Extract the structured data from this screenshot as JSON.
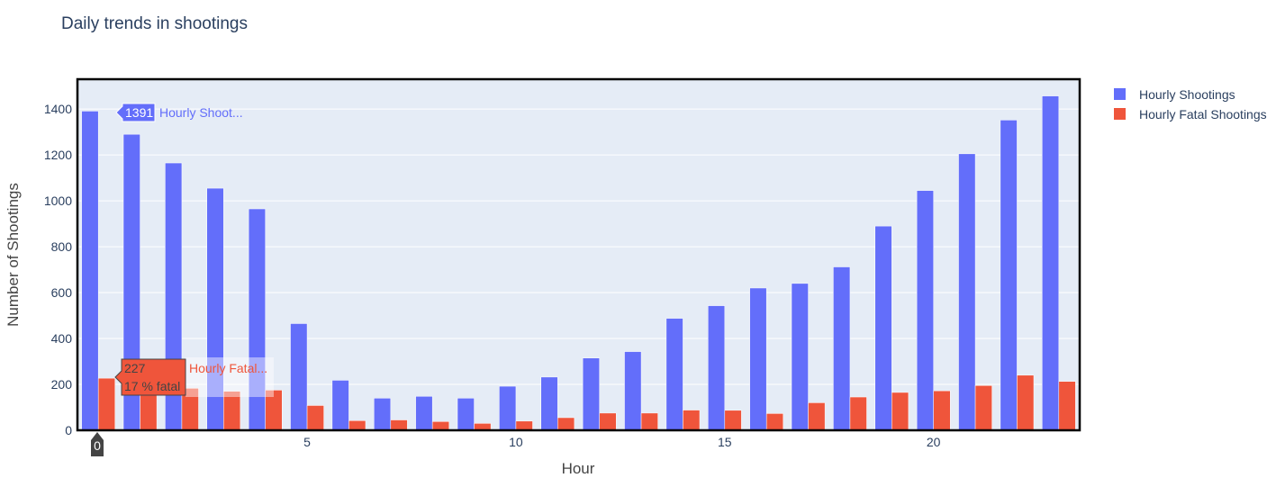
{
  "chart_data": {
    "type": "bar",
    "title": "Daily trends in shootings",
    "xlabel": "Hour",
    "ylabel": "Number of Shootings",
    "x_ticks": [
      5,
      10,
      15,
      20
    ],
    "y_ticks": [
      0,
      200,
      400,
      600,
      800,
      1000,
      1200,
      1400
    ],
    "xlim": [
      -0.5,
      23.5
    ],
    "ylim": [
      0,
      1530
    ],
    "categories": [
      0,
      1,
      2,
      3,
      4,
      5,
      6,
      7,
      8,
      9,
      10,
      11,
      12,
      13,
      14,
      15,
      16,
      17,
      18,
      19,
      20,
      21,
      22,
      23
    ],
    "series": [
      {
        "name": "Hourly Shootings",
        "color": "#636efa",
        "values": [
          1391,
          1290,
          1165,
          1055,
          965,
          465,
          218,
          140,
          148,
          140,
          192,
          232,
          315,
          343,
          488,
          543,
          620,
          640,
          712,
          890,
          1045,
          1205,
          1352,
          1457
        ]
      },
      {
        "name": "Hourly Fatal Shootings",
        "color": "#ef553b",
        "values": [
          227,
          175,
          183,
          170,
          175,
          108,
          42,
          45,
          38,
          30,
          40,
          55,
          75,
          75,
          88,
          87,
          73,
          120,
          145,
          165,
          172,
          195,
          240,
          213
        ]
      }
    ],
    "legend_position": "top-right",
    "grid": true,
    "background": "#e5ecf6",
    "hover": {
      "x_label": "0",
      "shootings": {
        "value": "1391",
        "name": "Hourly Shoot..."
      },
      "fatal": {
        "value": "227",
        "pct": "17 % fatal",
        "name": "Hourly Fatal..."
      }
    }
  }
}
